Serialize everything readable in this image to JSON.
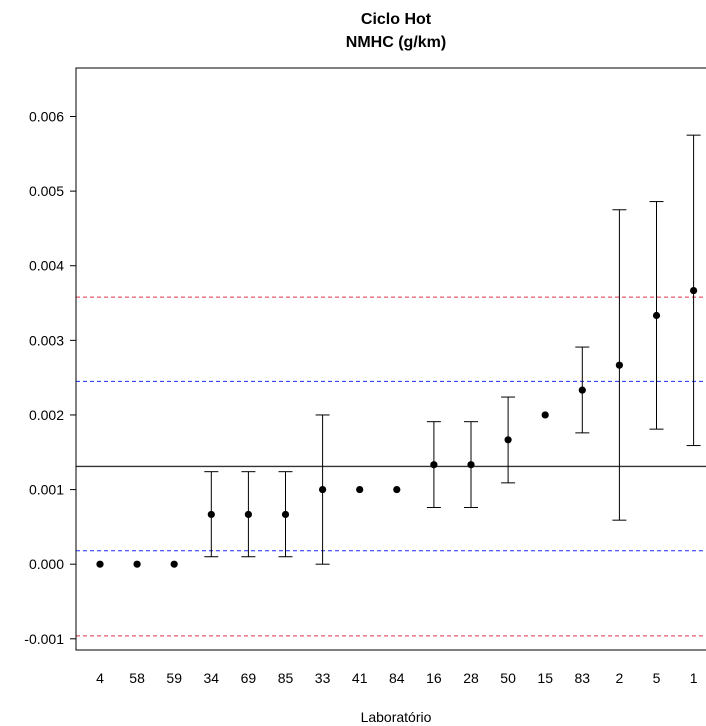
{
  "chart_data": {
    "type": "scatter",
    "title": "Ciclo Hot",
    "subtitle": "NMHC (g/km)",
    "xlabel": "Laboratório",
    "ylabel": "",
    "ylim": [
      -0.00115,
      0.00665
    ],
    "yticks": [
      "-0.001",
      "0.000",
      "0.001",
      "0.002",
      "0.003",
      "0.004",
      "0.005",
      "0.006"
    ],
    "ytick_values": [
      -0.001,
      0.0,
      0.001,
      0.002,
      0.003,
      0.004,
      0.005,
      0.006
    ],
    "grid": false,
    "categories": [
      "4",
      "58",
      "59",
      "34",
      "69",
      "85",
      "33",
      "41",
      "84",
      "16",
      "28",
      "50",
      "15",
      "83",
      "2",
      "5",
      "1"
    ],
    "values": [
      0.0,
      0.0,
      0.0,
      0.000667,
      0.000667,
      0.000667,
      0.001,
      0.001,
      0.001,
      0.001333,
      0.001333,
      0.001667,
      0.002,
      0.002333,
      0.002667,
      0.003333,
      0.003667
    ],
    "error_low": [
      null,
      null,
      null,
      0.0001,
      0.0001,
      0.0001,
      0.0,
      null,
      null,
      0.00076,
      0.00076,
      0.00109,
      null,
      0.00176,
      0.00059,
      0.00181,
      0.00159
    ],
    "error_high": [
      null,
      null,
      null,
      0.00124,
      0.00124,
      0.00124,
      0.002,
      null,
      null,
      0.00191,
      0.00191,
      0.00224,
      null,
      0.00291,
      0.00475,
      0.00486,
      0.00575
    ],
    "reference_lines": [
      {
        "value": 0.00131,
        "color": "#333333",
        "style": "solid"
      },
      {
        "value": 0.00245,
        "color": "#1f2bff",
        "style": "dashed"
      },
      {
        "value": 0.00018,
        "color": "#1f2bff",
        "style": "dashed"
      },
      {
        "value": 0.00358,
        "color": "#e0304a",
        "style": "dashed"
      },
      {
        "value": -0.00096,
        "color": "#e0304a",
        "style": "dashed"
      }
    ]
  }
}
